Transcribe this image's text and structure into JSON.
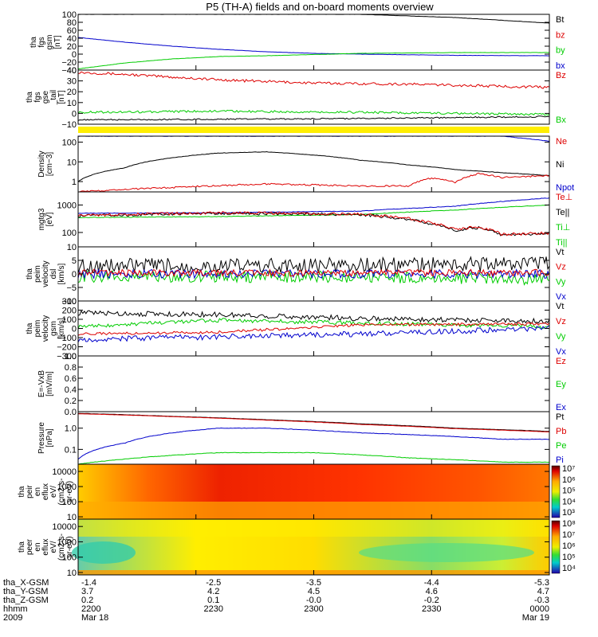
{
  "title": "P5 (TH-A) fields and on-board moments overview",
  "footer": {
    "rows": [
      {
        "label": "tha_X-GSM",
        "values": [
          "-1.4",
          "-2.5",
          "-3.5",
          "-4.4",
          "-5.3"
        ]
      },
      {
        "label": "tha_Y-GSM",
        "values": [
          "3.7",
          "4.2",
          "4.5",
          "4.6",
          "4.7"
        ]
      },
      {
        "label": "tha_Z-GSM",
        "values": [
          "0.2",
          "0.1",
          "-0.0",
          "-0.2",
          "-0.3"
        ]
      },
      {
        "label": "hhmm",
        "values": [
          "2200",
          "2230",
          "2300",
          "2330",
          "0000"
        ]
      },
      {
        "label": "2009",
        "values": [
          "Mar 18",
          "",
          "",
          "",
          "Mar 19"
        ]
      }
    ]
  },
  "chart_data": [
    {
      "type": "line",
      "id": "fgs_gsm",
      "ylabel": [
        "tha",
        "fgs",
        "gsm",
        "[nT]"
      ],
      "yticks": [
        "100",
        "80",
        "60",
        "40",
        "20",
        "0",
        "−20",
        "−40"
      ],
      "ylim": [
        -40,
        100
      ],
      "scale": "linear",
      "legend": [
        {
          "text": "Bt",
          "color": "#000000"
        },
        {
          "text": "bz",
          "color": "#dd0000"
        },
        {
          "text": "by",
          "color": "#00cc00"
        },
        {
          "text": "bx",
          "color": "#0000cc"
        }
      ],
      "series": [
        {
          "color": "#000000",
          "x": [
            0,
            0.2,
            0.4,
            0.6,
            0.8,
            1.0
          ],
          "y": [
            100,
            100,
            100,
            100,
            92,
            78
          ],
          "noise": 0.3
        },
        {
          "color": "#0000cc",
          "x": [
            0,
            0.1,
            0.2,
            0.3,
            0.4,
            0.5,
            0.6,
            0.8,
            1.0
          ],
          "y": [
            42,
            30,
            20,
            12,
            6,
            2,
            0,
            -3,
            -4
          ],
          "noise": 0.3
        },
        {
          "color": "#00cc00",
          "x": [
            0,
            0.1,
            0.2,
            0.3,
            0.4,
            0.6,
            0.8,
            1.0
          ],
          "y": [
            -37,
            -22,
            -12,
            -6,
            -4,
            2,
            4,
            4
          ],
          "noise": 0.3
        }
      ]
    },
    {
      "type": "line",
      "id": "fgs_gse",
      "ylabel": [
        "tha",
        "fgs",
        "gse",
        "_tail",
        "[nT]"
      ],
      "yticks": [
        "40",
        "30",
        "20",
        "10",
        "0",
        "−10"
      ],
      "ylim": [
        -10,
        40
      ],
      "scale": "linear",
      "legend": [
        {
          "text": "Bz",
          "color": "#dd0000"
        },
        {
          "text": "Bx",
          "color": "#00cc00"
        }
      ],
      "series": [
        {
          "color": "#dd0000",
          "x": [
            0,
            0.1,
            0.3,
            0.5,
            0.7,
            1.0
          ],
          "y": [
            38,
            36,
            31,
            28,
            27,
            24
          ],
          "noise": 1.2
        },
        {
          "color": "#00cc00",
          "x": [
            0,
            0.3,
            0.6,
            1.0
          ],
          "y": [
            1,
            2,
            1,
            -1
          ],
          "noise": 1.0
        },
        {
          "color": "#000000",
          "x": [
            0,
            0.5,
            1.0
          ],
          "y": [
            -6,
            -5,
            -3
          ],
          "noise": 0.6
        }
      ]
    },
    {
      "type": "line",
      "id": "density",
      "ylabel": [
        "Density",
        "[cm−3]"
      ],
      "yticks": [
        "100",
        "10",
        "1"
      ],
      "ylim": [
        0.3,
        200
      ],
      "scale": "log",
      "legend": [
        {
          "text": "Ne",
          "color": "#dd0000"
        },
        {
          "text": "Ni",
          "color": "#000000"
        },
        {
          "text": "Npot",
          "color": "#0000cc"
        }
      ],
      "series": [
        {
          "color": "#000000",
          "x": [
            0,
            0.1,
            0.2,
            0.3,
            0.4,
            0.5,
            0.6,
            0.7,
            0.8,
            0.9,
            1.0
          ],
          "y": [
            1,
            5,
            16,
            28,
            32,
            22,
            12,
            7,
            4,
            2.8,
            2
          ],
          "noise": 0.01
        },
        {
          "color": "#dd0000",
          "x": [
            0,
            0.2,
            0.4,
            0.6,
            0.7,
            0.75,
            0.8,
            0.85,
            0.9,
            1.0
          ],
          "y": [
            0.3,
            0.5,
            0.75,
            0.6,
            0.6,
            1.5,
            0.9,
            2.5,
            1.6,
            2
          ],
          "noise": 0.04
        },
        {
          "color": "#0000cc",
          "x": [
            0.9,
            0.95,
            1.0
          ],
          "y": [
            200,
            150,
            110
          ],
          "noise": 0.01
        }
      ]
    },
    {
      "type": "line",
      "id": "temperature",
      "ylabel": [
        "mgtg3",
        "[eV]"
      ],
      "yticks": [
        "1000",
        "100"
      ],
      "ylim": [
        30,
        3000
      ],
      "scale": "log",
      "legend": [
        {
          "text": "Te⊥",
          "color": "#dd0000"
        },
        {
          "text": "Te||",
          "color": "#000000"
        },
        {
          "text": "Ti⊥",
          "color": "#00cc00"
        },
        {
          "text": "Ti||",
          "color": "#00cc00"
        }
      ],
      "series": [
        {
          "color": "#0000cc",
          "x": [
            0,
            0.3,
            0.6,
            0.8,
            1.0
          ],
          "y": [
            500,
            520,
            600,
            900,
            1800
          ],
          "noise": 0.01
        },
        {
          "color": "#00cc00",
          "x": [
            0,
            0.3,
            0.6,
            0.8,
            1.0
          ],
          "y": [
            350,
            380,
            450,
            650,
            1000
          ],
          "noise": 0.01
        },
        {
          "color": "#000000",
          "x": [
            0,
            0.3,
            0.6,
            0.7,
            0.75,
            0.8,
            0.85,
            0.9,
            1.0
          ],
          "y": [
            400,
            500,
            450,
            300,
            200,
            120,
            150,
            80,
            90
          ],
          "noise": 0.05
        },
        {
          "color": "#dd0000",
          "x": [
            0,
            0.3,
            0.6,
            0.7,
            0.75,
            0.8,
            0.85,
            0.9,
            1.0
          ],
          "y": [
            420,
            520,
            470,
            320,
            220,
            130,
            160,
            85,
            95
          ],
          "noise": 0.05
        }
      ]
    },
    {
      "type": "line",
      "id": "peim_velocity_dsl",
      "ylabel": [
        "tha",
        "peim",
        "velocity",
        "dsl",
        "[km/s]"
      ],
      "yticks": [
        "10",
        "5",
        "0",
        "−5",
        "−10"
      ],
      "ylim": [
        -10,
        10
      ],
      "scale": "linear",
      "legend": [
        {
          "text": "Vt",
          "color": "#000000"
        },
        {
          "text": "Vz",
          "color": "#dd0000"
        },
        {
          "text": "Vy",
          "color": "#00cc00"
        },
        {
          "text": "Vx",
          "color": "#0000cc"
        }
      ],
      "series": [
        {
          "color": "#000000",
          "x": [
            0,
            0.4,
            0.8,
            1.0
          ],
          "y": [
            3,
            3,
            3.5,
            4
          ],
          "noise": 2.8
        },
        {
          "color": "#00cc00",
          "x": [
            0,
            0.5,
            1.0
          ],
          "y": [
            -1,
            -1,
            -2
          ],
          "noise": 2.2
        },
        {
          "color": "#0000cc",
          "x": [
            0,
            0.5,
            1.0
          ],
          "y": [
            0,
            0,
            0
          ],
          "noise": 1.6
        },
        {
          "color": "#dd0000",
          "x": [
            0,
            0.5,
            1.0
          ],
          "y": [
            0.5,
            0.3,
            0.5
          ],
          "noise": 1.2
        }
      ]
    },
    {
      "type": "line",
      "id": "peim_velocity_gsm",
      "ylabel": [
        "tha",
        "peim",
        "velocity",
        "gsm",
        "[km/s]"
      ],
      "yticks": [
        "300",
        "200",
        "100",
        "0",
        "−100",
        "−200",
        "−300"
      ],
      "ylim": [
        -300,
        300
      ],
      "scale": "linear",
      "legend": [
        {
          "text": "Vt",
          "color": "#000000"
        },
        {
          "text": "Vz",
          "color": "#dd0000"
        },
        {
          "text": "Vy",
          "color": "#00cc00"
        },
        {
          "text": "Vx",
          "color": "#0000cc"
        }
      ],
      "series": [
        {
          "color": "#000000",
          "x": [
            0,
            0.3,
            0.6,
            1.0
          ],
          "y": [
            170,
            150,
            110,
            80
          ],
          "noise": 28
        },
        {
          "color": "#00cc00",
          "x": [
            0,
            0.3,
            0.6,
            1.0
          ],
          "y": [
            20,
            90,
            60,
            20
          ],
          "noise": 22
        },
        {
          "color": "#0000cc",
          "x": [
            0,
            0.3,
            0.6,
            1.0
          ],
          "y": [
            -120,
            -90,
            -60,
            0
          ],
          "noise": 30
        },
        {
          "color": "#dd0000",
          "x": [
            0,
            0.3,
            0.6,
            1.0
          ],
          "y": [
            -60,
            -40,
            40,
            50
          ],
          "noise": 15
        }
      ]
    },
    {
      "type": "line",
      "id": "efield",
      "ylabel": [
        "E=-VxB",
        "[mV/m]"
      ],
      "yticks": [
        "1.0",
        "0.8",
        "0.6",
        "0.4",
        "0.2",
        "0.0"
      ],
      "ylim": [
        0,
        1
      ],
      "scale": "linear",
      "legend": [
        {
          "text": "Ez",
          "color": "#dd0000"
        },
        {
          "text": "Ey",
          "color": "#00cc00"
        },
        {
          "text": "Ex",
          "color": "#0000cc"
        }
      ],
      "series": []
    },
    {
      "type": "line",
      "id": "pressure",
      "ylabel": [
        "Pressure",
        "[nPa]"
      ],
      "yticks": [
        "1.0",
        "0.1"
      ],
      "ylim": [
        0.02,
        6
      ],
      "scale": "log",
      "legend": [
        {
          "text": "Pt",
          "color": "#000000"
        },
        {
          "text": "Pb",
          "color": "#dd0000"
        },
        {
          "text": "Pe",
          "color": "#00cc00"
        },
        {
          "text": "Pi",
          "color": "#0000cc"
        }
      ],
      "series": [
        {
          "color": "#000000",
          "x": [
            0,
            0.2,
            0.4,
            0.6,
            0.8,
            1.0
          ],
          "y": [
            5,
            3.6,
            2.5,
            1.6,
            1.0,
            0.7
          ],
          "noise": 0.005
        },
        {
          "color": "#dd0000",
          "x": [
            0,
            0.2,
            0.4,
            0.6,
            0.8,
            1.0
          ],
          "y": [
            4.8,
            3.5,
            2.4,
            1.5,
            0.95,
            0.66
          ],
          "noise": 0.005
        },
        {
          "color": "#0000cc",
          "x": [
            0,
            0.1,
            0.2,
            0.3,
            0.4,
            0.6,
            0.8,
            0.9,
            1.0
          ],
          "y": [
            0.035,
            0.2,
            0.6,
            1.0,
            1.0,
            0.6,
            0.4,
            0.3,
            0.3
          ],
          "noise": 0.01
        },
        {
          "color": "#00cc00",
          "x": [
            0,
            0.1,
            0.3,
            0.5,
            0.7,
            0.9,
            1.0
          ],
          "y": [
            0.02,
            0.035,
            0.07,
            0.07,
            0.04,
            0.025,
            0.025
          ],
          "noise": 0.01
        }
      ]
    },
    {
      "type": "heatmap",
      "id": "peir_eflux",
      "ylabel": [
        "tha",
        "peir",
        "en",
        "eflux",
        "eV/",
        "(cm2-s-",
        "sr-eV)"
      ],
      "yticks": [
        "10000",
        "1000",
        "100",
        "10"
      ],
      "ylim": [
        7,
        30000
      ],
      "scale": "log",
      "colorbar": [
        "10⁷",
        "10⁶",
        "10⁵",
        "10⁴",
        "10³"
      ]
    },
    {
      "type": "heatmap",
      "id": "peer_eflux",
      "ylabel": [
        "tha",
        "peer",
        "en",
        "eflux",
        "eV/",
        "(cm2-s-",
        "sr-eV)"
      ],
      "yticks": [
        "10000",
        "1000",
        "100",
        "10"
      ],
      "ylim": [
        7,
        30000
      ],
      "scale": "log",
      "colorbar": [
        "10⁸",
        "10⁷",
        "10⁶",
        "10⁵",
        "10⁴"
      ]
    }
  ]
}
